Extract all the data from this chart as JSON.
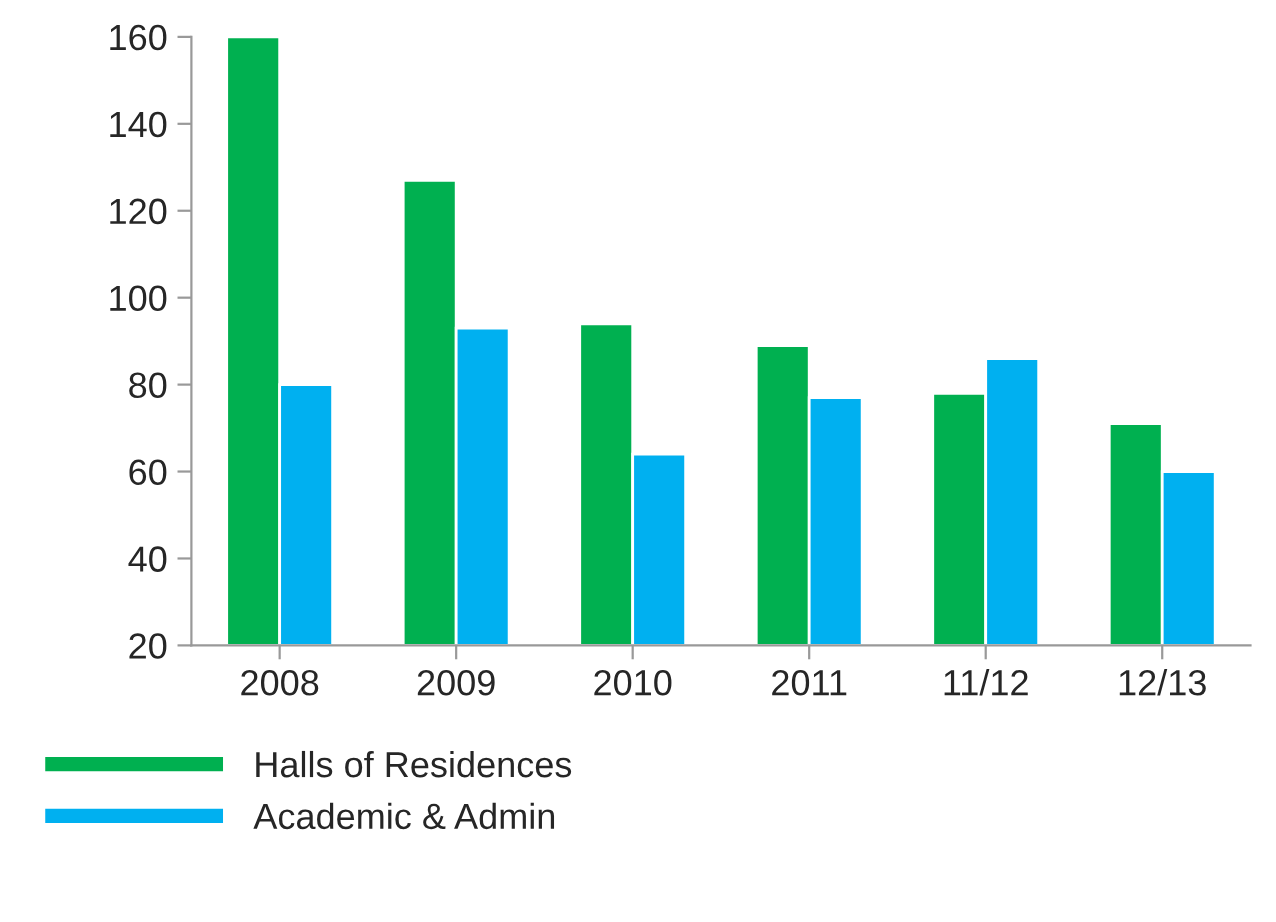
{
  "chart_data": {
    "type": "bar",
    "categories": [
      "2008",
      "2009",
      "2010",
      "2011",
      "11/12",
      "12/13"
    ],
    "series": [
      {
        "name": "Halls of Residences",
        "color": "#00b050",
        "values": [
          160,
          127,
          94,
          89,
          78,
          71
        ]
      },
      {
        "name": "Academic & Admin",
        "color": "#00b0f0",
        "values": [
          80,
          93,
          64,
          77,
          86,
          60
        ]
      }
    ],
    "ylim": [
      20,
      160
    ],
    "yticks": [
      20,
      40,
      60,
      80,
      100,
      120,
      140,
      160
    ],
    "grid": false,
    "legend": "bottom left"
  }
}
